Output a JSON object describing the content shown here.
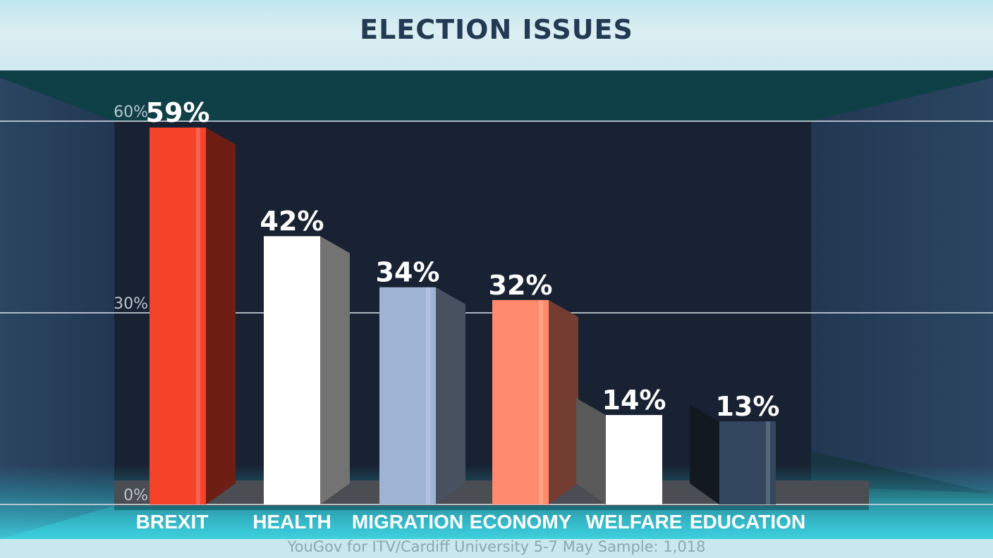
{
  "chart_data": {
    "type": "bar",
    "title": "ELECTION ISSUES",
    "categories": [
      "BREXIT",
      "HEALTH",
      "MIGRATION",
      "ECONOMY",
      "WELFARE",
      "EDUCATION"
    ],
    "values": [
      59,
      42,
      34,
      32,
      14,
      13
    ],
    "value_labels": [
      "59%",
      "42%",
      "34%",
      "32%",
      "14%",
      "13%"
    ],
    "ylim": [
      0,
      60
    ],
    "y_ticks": [
      0,
      30,
      60
    ],
    "y_tick_labels": [
      "0%",
      "30%",
      "60%"
    ],
    "grid": true,
    "bar_colors": [
      "#f5432a",
      "#ffffff",
      "#9fb4d4",
      "#ff8a6c",
      "#ffffff",
      "#33475f"
    ],
    "source": "YouGov for ITV/Cardiff University 5-7 May Sample: 1,018"
  }
}
